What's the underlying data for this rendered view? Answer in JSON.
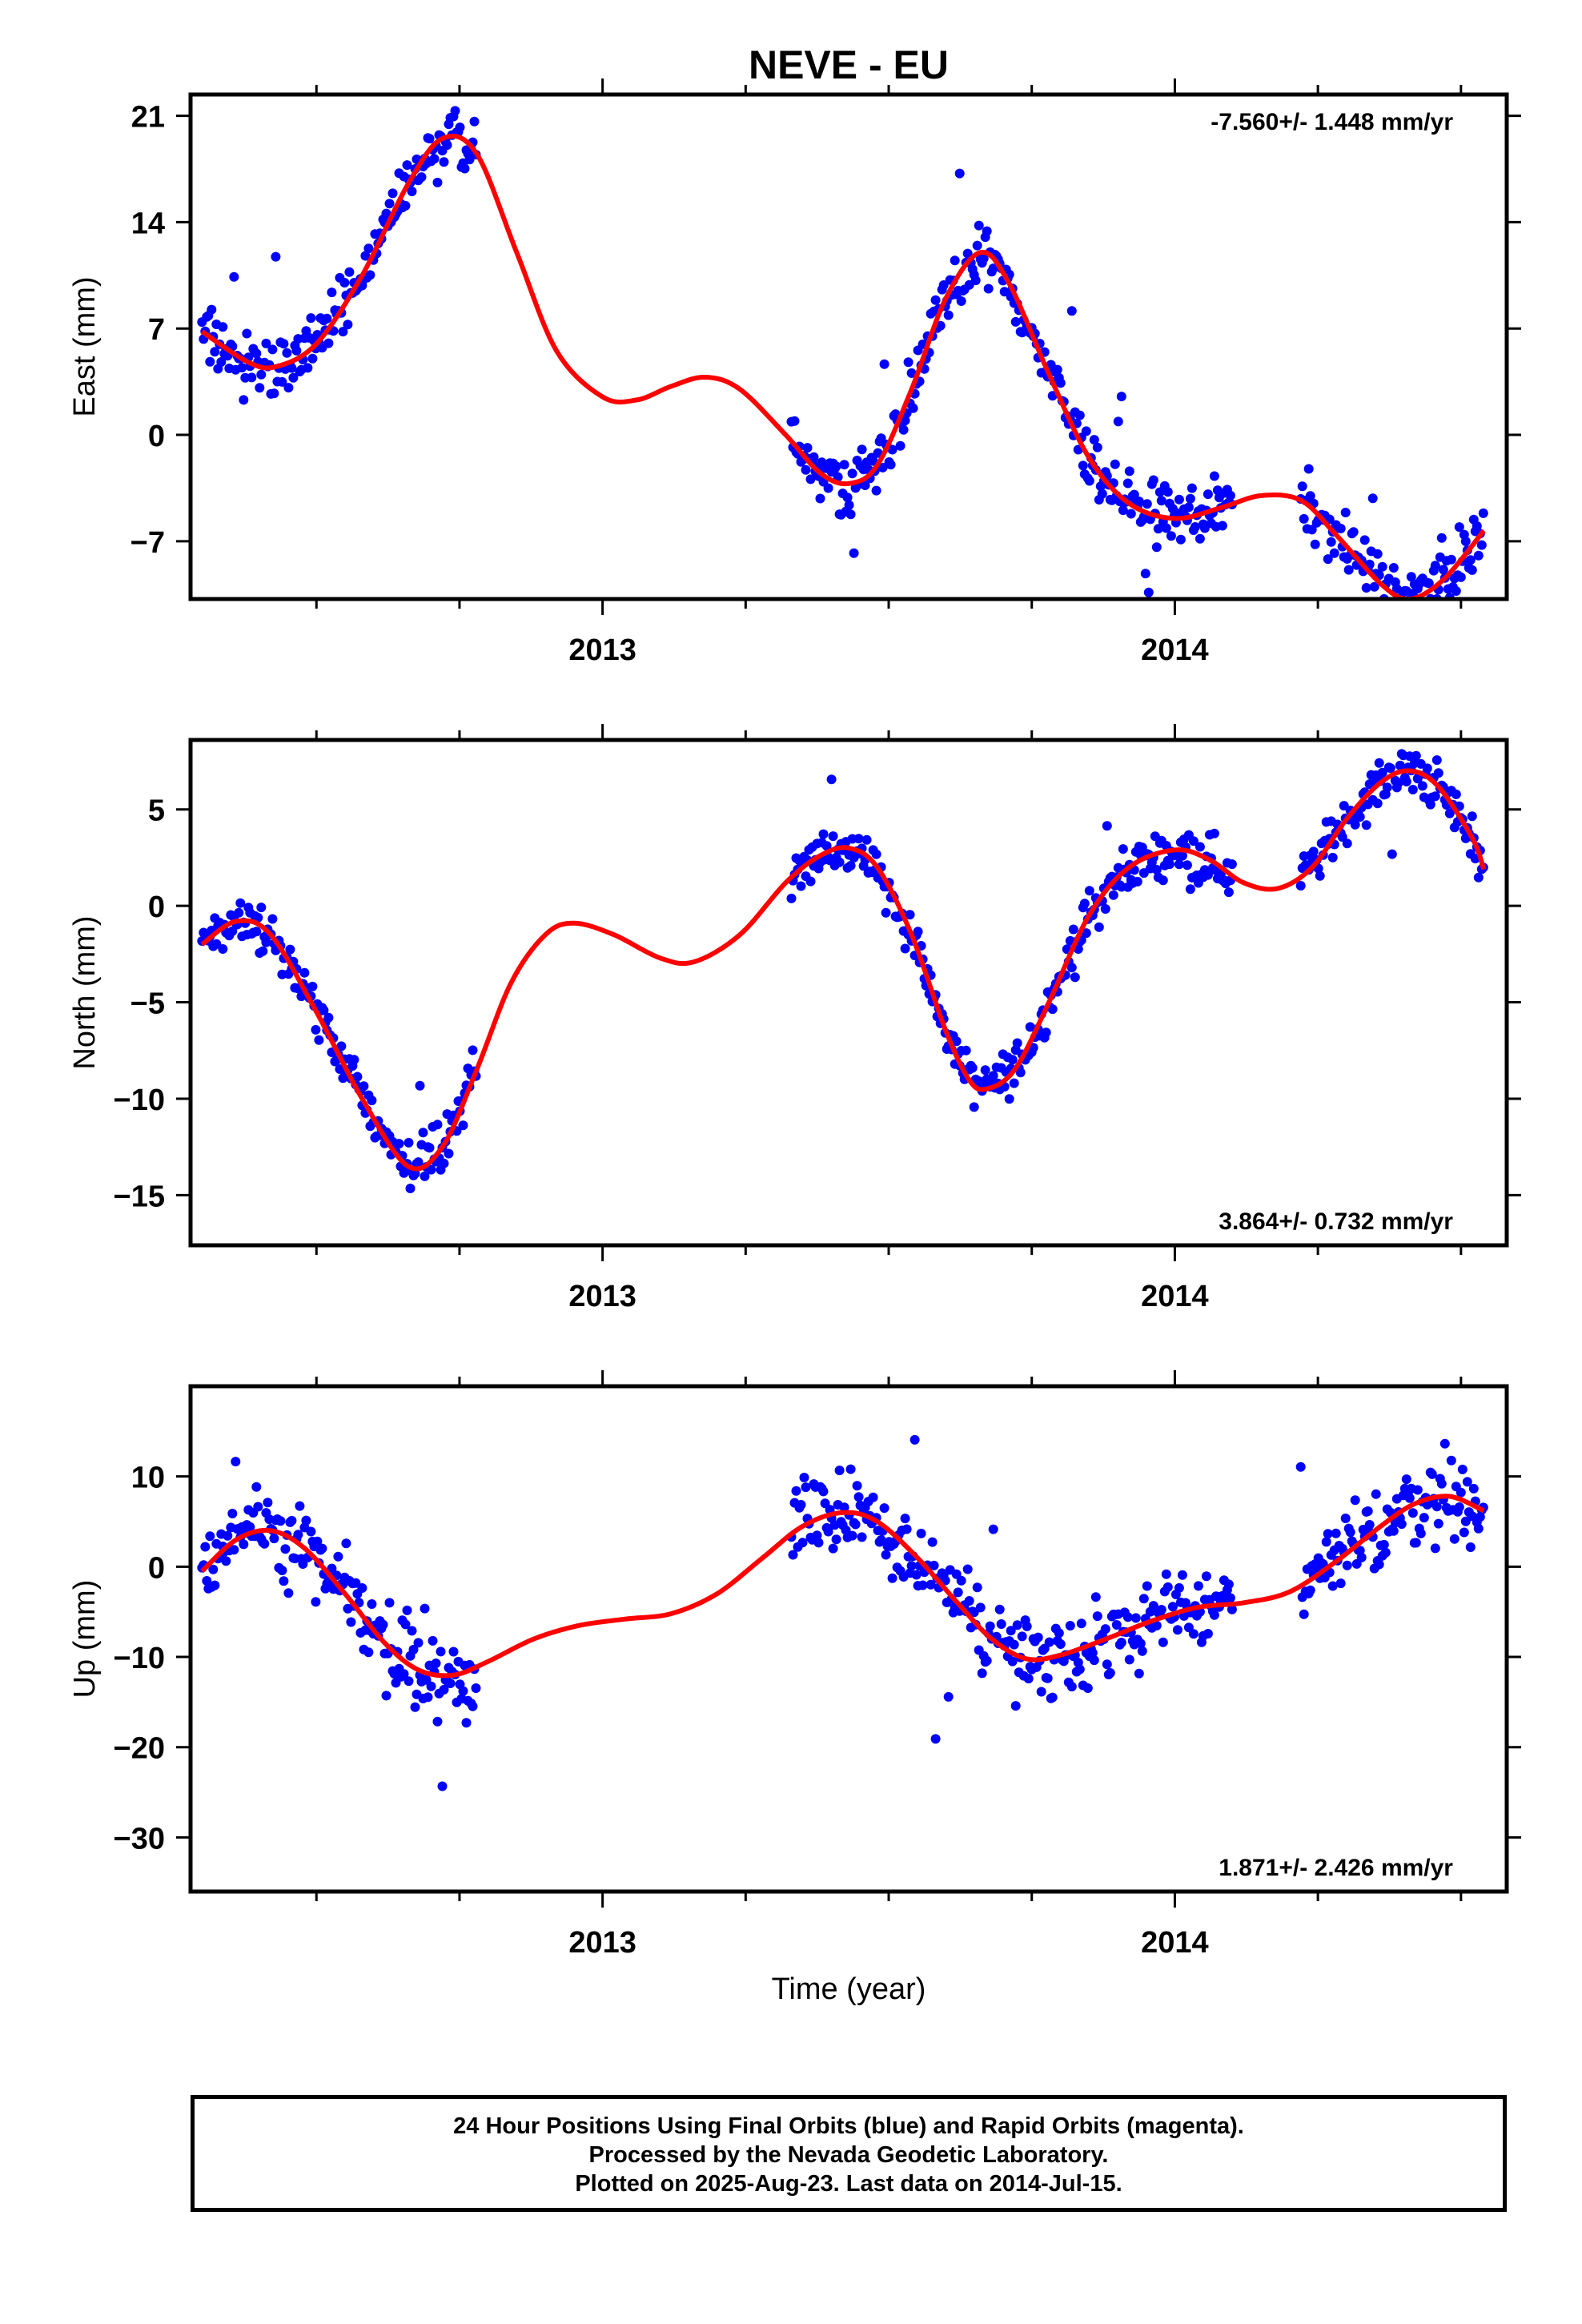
{
  "chart_data": [
    {
      "type": "scatter",
      "title": "NEVE - EU",
      "ylabel": "East (mm)",
      "xlabel": "",
      "ylim": [
        -10.8,
        22.4
      ],
      "xlim": [
        2012.28,
        2014.58
      ],
      "yticks": [
        21,
        14,
        7,
        0,
        -7
      ],
      "xticks": [
        2013,
        2014
      ],
      "velocity": "-7.560+/- 1.448 mm/yr",
      "grid": false,
      "segments": [
        [
          2012.3,
          2012.78
        ],
        [
          2013.33,
          2014.1
        ],
        [
          2014.22,
          2014.54
        ]
      ],
      "model": [
        [
          2012.3,
          6.8
        ],
        [
          2012.38,
          4.8
        ],
        [
          2012.43,
          4.5
        ],
        [
          2012.5,
          6.0
        ],
        [
          2012.58,
          10.5
        ],
        [
          2012.66,
          16.5
        ],
        [
          2012.72,
          19.5
        ],
        [
          2012.78,
          18.5
        ],
        [
          2012.85,
          12.0
        ],
        [
          2012.92,
          5.5
        ],
        [
          2013.0,
          2.5
        ],
        [
          2013.06,
          2.3
        ],
        [
          2013.12,
          3.2
        ],
        [
          2013.18,
          3.8
        ],
        [
          2013.24,
          3.0
        ],
        [
          2013.32,
          0.0
        ],
        [
          2013.38,
          -2.5
        ],
        [
          2013.43,
          -3.2
        ],
        [
          2013.48,
          -2.0
        ],
        [
          2013.54,
          3.0
        ],
        [
          2013.6,
          9.0
        ],
        [
          2013.66,
          12.0
        ],
        [
          2013.71,
          10.0
        ],
        [
          2013.78,
          4.0
        ],
        [
          2013.85,
          -1.5
        ],
        [
          2013.92,
          -4.5
        ],
        [
          2014.0,
          -5.5
        ],
        [
          2014.08,
          -4.8
        ],
        [
          2014.15,
          -4.0
        ],
        [
          2014.22,
          -4.3
        ],
        [
          2014.28,
          -6.5
        ],
        [
          2014.36,
          -9.8
        ],
        [
          2014.41,
          -10.8
        ],
        [
          2014.47,
          -9.5
        ],
        [
          2014.54,
          -6.3
        ]
      ],
      "series": [
        {
          "name": "",
          "color": "#0000ff"
        },
        {
          "name": "",
          "color": "#ff0000"
        }
      ]
    },
    {
      "type": "scatter",
      "title": "",
      "ylabel": "North (mm)",
      "xlabel": "",
      "ylim": [
        -17.6,
        8.6
      ],
      "xlim": [
        2012.28,
        2014.58
      ],
      "yticks": [
        5,
        0,
        -5,
        -10,
        -15
      ],
      "xticks": [
        2013,
        2014
      ],
      "velocity": "3.864+/- 0.732 mm/yr",
      "grid": false,
      "segments": [
        [
          2012.3,
          2012.78
        ],
        [
          2013.33,
          2014.1
        ],
        [
          2014.22,
          2014.54
        ]
      ],
      "model": [
        [
          2012.3,
          -2.0
        ],
        [
          2012.36,
          -0.8
        ],
        [
          2012.42,
          -1.5
        ],
        [
          2012.5,
          -5.5
        ],
        [
          2012.58,
          -10.0
        ],
        [
          2012.66,
          -13.5
        ],
        [
          2012.72,
          -12.5
        ],
        [
          2012.78,
          -8.5
        ],
        [
          2012.84,
          -4.0
        ],
        [
          2012.9,
          -1.5
        ],
        [
          2012.95,
          -0.9
        ],
        [
          2013.02,
          -1.5
        ],
        [
          2013.1,
          -2.7
        ],
        [
          2013.16,
          -2.9
        ],
        [
          2013.24,
          -1.5
        ],
        [
          2013.32,
          1.2
        ],
        [
          2013.38,
          2.6
        ],
        [
          2013.43,
          3.0
        ],
        [
          2013.48,
          2.0
        ],
        [
          2013.54,
          -1.5
        ],
        [
          2013.6,
          -6.5
        ],
        [
          2013.64,
          -9.0
        ],
        [
          2013.67,
          -9.5
        ],
        [
          2013.72,
          -8.5
        ],
        [
          2013.78,
          -5.0
        ],
        [
          2013.85,
          -0.5
        ],
        [
          2013.92,
          2.0
        ],
        [
          2014.0,
          2.9
        ],
        [
          2014.06,
          2.4
        ],
        [
          2014.12,
          1.2
        ],
        [
          2014.18,
          0.9
        ],
        [
          2014.24,
          2.0
        ],
        [
          2014.3,
          4.5
        ],
        [
          2014.36,
          6.4
        ],
        [
          2014.41,
          7.0
        ],
        [
          2014.46,
          6.2
        ],
        [
          2014.52,
          3.5
        ],
        [
          2014.54,
          1.9
        ]
      ],
      "series": [
        {
          "name": "",
          "color": "#0000ff"
        },
        {
          "name": "",
          "color": "#ff0000"
        }
      ]
    },
    {
      "type": "scatter",
      "title": "",
      "ylabel": "Up (mm)",
      "xlabel": "Time (year)",
      "ylim": [
        -36,
        20
      ],
      "xlim": [
        2012.28,
        2014.58
      ],
      "yticks": [
        10,
        0,
        -10,
        -20,
        -30
      ],
      "xticks": [
        2013,
        2014
      ],
      "velocity": "1.871+/- 2.426 mm/yr",
      "grid": false,
      "segments": [
        [
          2012.3,
          2012.78
        ],
        [
          2013.33,
          2014.1
        ],
        [
          2014.22,
          2014.54
        ]
      ],
      "model": [
        [
          2012.3,
          -0.5
        ],
        [
          2012.36,
          3.0
        ],
        [
          2012.42,
          4.0
        ],
        [
          2012.48,
          2.0
        ],
        [
          2012.55,
          -3.0
        ],
        [
          2012.62,
          -8.5
        ],
        [
          2012.68,
          -11.5
        ],
        [
          2012.74,
          -12.0
        ],
        [
          2012.8,
          -10.5
        ],
        [
          2012.88,
          -8.0
        ],
        [
          2012.96,
          -6.5
        ],
        [
          2013.04,
          -5.8
        ],
        [
          2013.12,
          -5.2
        ],
        [
          2013.2,
          -3.0
        ],
        [
          2013.28,
          1.0
        ],
        [
          2013.35,
          4.5
        ],
        [
          2013.42,
          6.0
        ],
        [
          2013.48,
          5.0
        ],
        [
          2013.55,
          1.0
        ],
        [
          2013.62,
          -4.0
        ],
        [
          2013.68,
          -8.0
        ],
        [
          2013.74,
          -10.2
        ],
        [
          2013.8,
          -9.8
        ],
        [
          2013.88,
          -8.0
        ],
        [
          2013.96,
          -6.0
        ],
        [
          2014.04,
          -4.5
        ],
        [
          2014.12,
          -4.0
        ],
        [
          2014.2,
          -2.8
        ],
        [
          2014.28,
          0.5
        ],
        [
          2014.36,
          4.5
        ],
        [
          2014.42,
          7.0
        ],
        [
          2014.48,
          7.8
        ],
        [
          2014.54,
          6.2
        ]
      ],
      "series": [
        {
          "name": "",
          "color": "#0000ff"
        },
        {
          "name": "",
          "color": "#ff0000"
        }
      ]
    }
  ],
  "footer": {
    "line1": "24 Hour Positions Using Final Orbits (blue) and Rapid Orbits (magenta).",
    "line2": "Processed by the Nevada Geodetic Laboratory.",
    "line3": "Plotted on 2025-Aug-23. Last data on 2014-Jul-15."
  }
}
